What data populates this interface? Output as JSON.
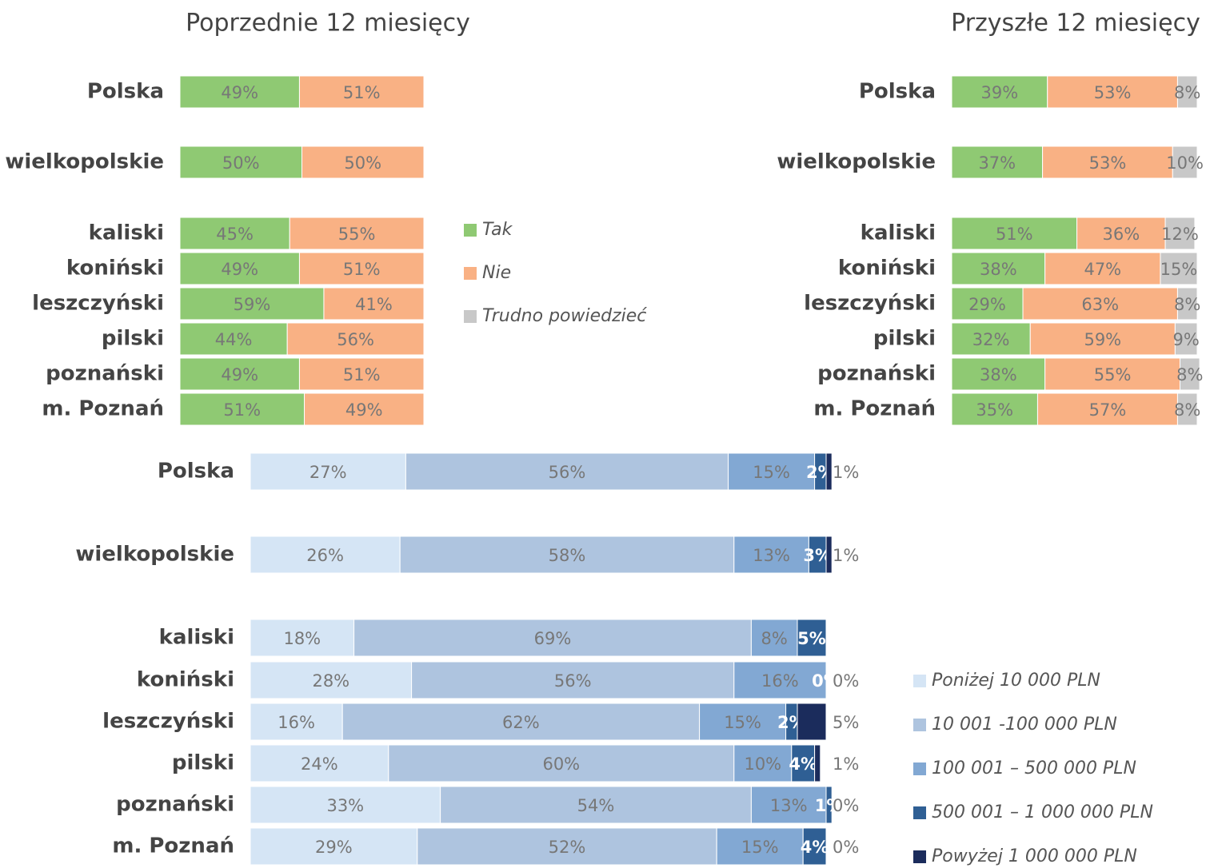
{
  "chart_data": [
    {
      "type": "stacked-bar",
      "title": "Poprzednie 12 miesięcy",
      "categories": [
        "Polska",
        "wielkopolskie",
        "kaliski",
        "koniński",
        "leszczyński",
        "pilski",
        "poznański",
        "m. Poznań"
      ],
      "series": [
        {
          "name": "Tak",
          "color": "#8fc973",
          "values": [
            49,
            50,
            45,
            49,
            59,
            44,
            49,
            51
          ],
          "value_labels": [
            "49%",
            "50%",
            "45%",
            "49%",
            "59%",
            "44%",
            "49%",
            "51%"
          ]
        },
        {
          "name": "Nie",
          "color": "#f9b184",
          "values": [
            51,
            50,
            55,
            51,
            41,
            56,
            51,
            49
          ],
          "value_labels": [
            "51%",
            "50%",
            "55%",
            "51%",
            "41%",
            "56%",
            "51%",
            "49%"
          ]
        }
      ]
    },
    {
      "type": "stacked-bar",
      "title": "Przyszłe 12 miesięcy",
      "categories": [
        "Polska",
        "wielkopolskie",
        "kaliski",
        "koniński",
        "leszczyński",
        "pilski",
        "poznański",
        "m. Poznań"
      ],
      "series": [
        {
          "name": "Tak",
          "color": "#8fc973",
          "values": [
            39,
            37,
            51,
            38,
            29,
            32,
            38,
            35
          ],
          "value_labels": [
            "39%",
            "37%",
            "51%",
            "38%",
            "29%",
            "32%",
            "38%",
            "35%"
          ]
        },
        {
          "name": "Nie",
          "color": "#f9b184",
          "values": [
            53,
            53,
            36,
            47,
            63,
            59,
            55,
            57
          ],
          "value_labels": [
            "53%",
            "53%",
            "36%",
            "47%",
            "63%",
            "59%",
            "55%",
            "57%"
          ]
        },
        {
          "name": "Trudno powiedzieć",
          "color": "#c8c8c8",
          "values": [
            8,
            10,
            12,
            15,
            8,
            9,
            8,
            8
          ],
          "value_labels": [
            "8%",
            "10%",
            "12%",
            "15%",
            "8%",
            "9%",
            "8%",
            "8%"
          ]
        }
      ]
    },
    {
      "type": "stacked-bar",
      "categories": [
        "Polska",
        "wielkopolskie",
        "kaliski",
        "koniński",
        "leszczyński",
        "pilski",
        "poznański",
        "m. Poznań"
      ],
      "series": [
        {
          "name": "Poniżej 10 000 PLN",
          "color": "#d5e5f5",
          "values": [
            27,
            26,
            18,
            28,
            16,
            24,
            33,
            29
          ],
          "value_labels": [
            "27%",
            "26%",
            "18%",
            "28%",
            "16%",
            "24%",
            "33%",
            "29%"
          ]
        },
        {
          "name": "10 001 -100 000 PLN",
          "color": "#aec4df",
          "values": [
            56,
            58,
            69,
            56,
            62,
            60,
            54,
            52
          ],
          "value_labels": [
            "56%",
            "58%",
            "69%",
            "56%",
            "62%",
            "60%",
            "54%",
            "52%"
          ]
        },
        {
          "name": "100 001 – 500 000 PLN",
          "color": "#82a8d3",
          "values": [
            15,
            13,
            8,
            16,
            15,
            10,
            13,
            15
          ],
          "value_labels": [
            "15%",
            "13%",
            "8%",
            "16%",
            "15%",
            "10%",
            "13%",
            "15%"
          ]
        },
        {
          "name": "500 001 – 1 000 000 PLN",
          "color": "#2f5f94",
          "values": [
            2,
            3,
            5,
            0,
            2,
            4,
            1,
            4
          ],
          "value_labels": [
            "2%",
            "3%",
            "5%",
            "0%",
            "2%",
            "4%",
            "1%",
            "4%"
          ]
        },
        {
          "name": "Powyżej 1 000 000 PLN",
          "color": "#1b2c5c",
          "values": [
            1,
            1,
            null,
            0,
            5,
            1,
            0,
            0
          ],
          "value_labels": [
            "1%",
            "1%",
            null,
            "0%",
            "5%",
            "1%",
            "0%",
            "0%"
          ]
        }
      ]
    }
  ]
}
